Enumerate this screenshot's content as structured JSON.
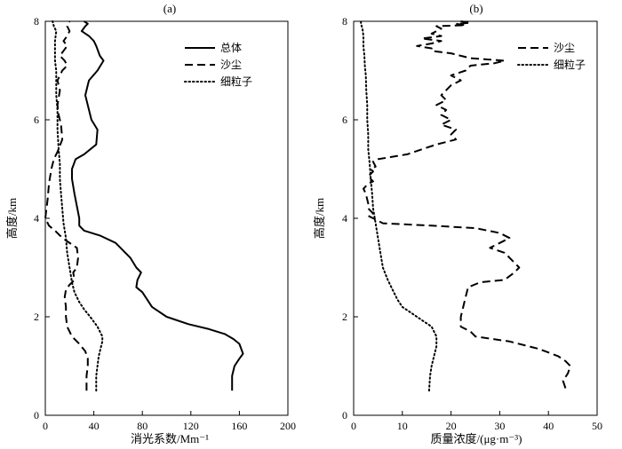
{
  "chart_data": [
    {
      "type": "line",
      "panel_label": "(a)",
      "title": "",
      "xlabel": "消光系数/Mm⁻¹",
      "ylabel": "高度/km",
      "xlim": [
        0,
        200
      ],
      "ylim": [
        0,
        8
      ],
      "xticks": [
        0,
        40,
        80,
        120,
        160,
        200
      ],
      "yticks": [
        0,
        2,
        4,
        6,
        8
      ],
      "legend_position": "top-right",
      "series": [
        {
          "name": "总体",
          "style": "solid",
          "color": "#000000",
          "x": [
            154,
            154,
            156,
            160,
            163,
            160,
            155,
            148,
            135,
            118,
            100,
            88,
            80,
            75,
            76,
            79,
            75,
            70,
            58,
            45,
            32,
            28,
            28,
            24,
            22,
            22,
            25,
            32,
            42,
            43,
            38,
            33,
            36,
            43,
            48,
            45,
            42,
            40,
            36,
            30,
            33,
            35,
            32
          ],
          "y": [
            0.5,
            0.8,
            1.0,
            1.15,
            1.25,
            1.45,
            1.55,
            1.65,
            1.75,
            1.85,
            2.0,
            2.2,
            2.5,
            2.6,
            2.75,
            2.9,
            3.0,
            3.2,
            3.5,
            3.65,
            3.75,
            3.85,
            4.0,
            4.5,
            4.8,
            5.0,
            5.2,
            5.3,
            5.5,
            5.8,
            6.0,
            6.5,
            6.8,
            7.0,
            7.2,
            7.3,
            7.5,
            7.6,
            7.7,
            7.8,
            7.9,
            7.95,
            8.0
          ]
        },
        {
          "name": "沙尘",
          "style": "dashed",
          "color": "#000000",
          "x": [
            34,
            34,
            35,
            35,
            33,
            28,
            22,
            18,
            17,
            17,
            16,
            17,
            20,
            24,
            23,
            26,
            27,
            26,
            17,
            12,
            8,
            3,
            0,
            2,
            3,
            5,
            7,
            10,
            14,
            13,
            11,
            10,
            12,
            10,
            14,
            18,
            16,
            12,
            15,
            18,
            15,
            18,
            20,
            18,
            20
          ],
          "y": [
            0.5,
            0.8,
            1.0,
            1.15,
            1.3,
            1.45,
            1.6,
            1.8,
            2.0,
            2.2,
            2.4,
            2.55,
            2.65,
            2.75,
            2.9,
            3.0,
            3.2,
            3.4,
            3.55,
            3.65,
            3.75,
            3.85,
            4.0,
            4.4,
            4.7,
            5.0,
            5.2,
            5.35,
            5.6,
            5.9,
            6.1,
            6.3,
            6.6,
            6.8,
            7.0,
            7.1,
            7.2,
            7.3,
            7.4,
            7.5,
            7.6,
            7.7,
            7.8,
            7.9,
            8.0
          ]
        },
        {
          "name": "细粒子",
          "style": "dotted",
          "color": "#000000",
          "x": [
            42,
            42,
            43,
            44,
            46,
            47,
            47,
            45,
            43,
            40,
            37,
            32,
            28,
            24,
            22,
            20,
            18,
            17,
            15,
            14,
            13,
            12,
            12,
            11,
            10,
            10,
            9,
            9,
            9,
            8,
            8,
            8,
            9,
            7,
            6
          ],
          "y": [
            0.5,
            0.8,
            1.0,
            1.2,
            1.4,
            1.5,
            1.6,
            1.7,
            1.8,
            1.9,
            2.0,
            2.15,
            2.3,
            2.5,
            2.7,
            3.0,
            3.3,
            3.6,
            3.9,
            4.2,
            4.5,
            4.8,
            5.1,
            5.4,
            5.8,
            6.2,
            6.5,
            6.8,
            7.0,
            7.2,
            7.4,
            7.6,
            7.8,
            7.9,
            8.0
          ]
        }
      ]
    },
    {
      "type": "line",
      "panel_label": "(b)",
      "title": "",
      "xlabel": "质量浓度/(μg·m⁻³)",
      "ylabel": "高度/km",
      "xlim": [
        0,
        50
      ],
      "ylim": [
        0,
        8
      ],
      "xticks": [
        0,
        10,
        20,
        30,
        40,
        50
      ],
      "yticks": [
        0,
        2,
        4,
        6,
        8
      ],
      "legend_position": "top-right",
      "series": [
        {
          "name": "沙尘",
          "style": "dashed",
          "color": "#000000",
          "x": [
            43.5,
            43,
            44,
            44.5,
            43.5,
            42,
            38,
            32,
            25,
            24,
            22,
            22,
            22.5,
            23,
            23.5,
            26,
            31,
            33,
            34,
            33,
            32,
            31,
            28,
            30,
            32,
            30,
            25,
            16,
            6,
            4,
            3,
            4,
            3,
            3,
            2.5,
            2,
            3,
            4,
            3,
            4,
            3.5,
            4.5,
            4,
            5,
            8,
            11,
            14,
            17,
            21,
            20,
            21,
            18,
            20,
            18,
            19,
            17,
            19,
            18,
            19,
            20,
            22,
            20,
            23,
            24,
            29,
            31,
            24,
            22,
            20,
            16,
            16,
            13,
            16,
            18,
            14,
            18,
            16,
            17,
            18,
            17,
            23,
            21,
            24,
            22
          ],
          "y": [
            0.55,
            0.7,
            0.85,
            1.0,
            1.1,
            1.2,
            1.35,
            1.5,
            1.6,
            1.7,
            1.8,
            2.0,
            2.2,
            2.4,
            2.6,
            2.7,
            2.75,
            2.9,
            3.0,
            3.1,
            3.2,
            3.3,
            3.4,
            3.5,
            3.6,
            3.7,
            3.8,
            3.85,
            3.9,
            4.0,
            4.05,
            4.1,
            4.2,
            4.3,
            4.5,
            4.6,
            4.7,
            4.75,
            4.85,
            4.95,
            5.0,
            5.05,
            5.15,
            5.2,
            5.25,
            5.3,
            5.4,
            5.5,
            5.6,
            5.7,
            5.8,
            5.9,
            6.0,
            6.1,
            6.2,
            6.3,
            6.4,
            6.5,
            6.6,
            6.7,
            6.8,
            6.9,
            7.0,
            7.1,
            7.15,
            7.2,
            7.25,
            7.3,
            7.35,
            7.4,
            7.45,
            7.5,
            7.55,
            7.6,
            7.65,
            7.7,
            7.75,
            7.8,
            7.85,
            7.9,
            7.92,
            7.95,
            7.97,
            8.0
          ]
        },
        {
          "name": "细粒子",
          "style": "dotted",
          "color": "#000000",
          "x": [
            15.5,
            15.7,
            16,
            16.5,
            17,
            17,
            16.5,
            16,
            14.5,
            13,
            11.5,
            10,
            9,
            8,
            7,
            6,
            5.5,
            5,
            4.5,
            4,
            3.8,
            3.5,
            3.3,
            3,
            3,
            2.8,
            2.8,
            2.6,
            2.5,
            2.3,
            2.2,
            2.0,
            2.0,
            1.8,
            1.5,
            1.5
          ],
          "y": [
            0.5,
            0.8,
            1.0,
            1.2,
            1.4,
            1.6,
            1.7,
            1.8,
            1.9,
            2.0,
            2.1,
            2.2,
            2.35,
            2.55,
            2.75,
            3.0,
            3.3,
            3.6,
            3.9,
            4.2,
            4.5,
            4.8,
            5.1,
            5.4,
            5.7,
            6.0,
            6.3,
            6.6,
            6.9,
            7.1,
            7.3,
            7.5,
            7.7,
            7.85,
            7.95,
            8.0
          ]
        }
      ]
    }
  ]
}
